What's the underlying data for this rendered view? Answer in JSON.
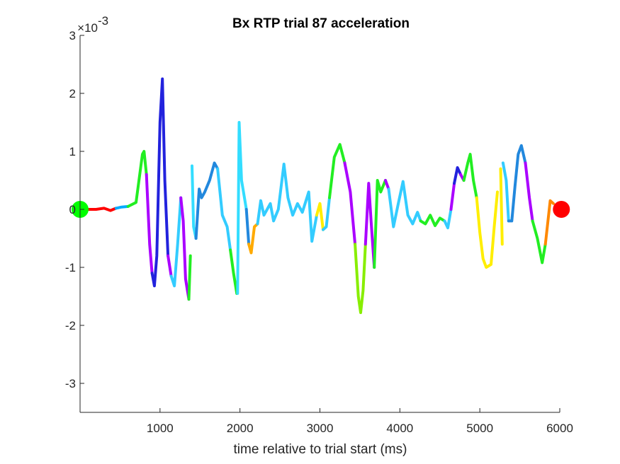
{
  "chart_data": {
    "type": "line",
    "title": "Bx  RTP trial 87 acceleration",
    "xlabel": "time relative to trial start (ms)",
    "ylabel": "",
    "exponent_prefix": "×10",
    "exponent_power": "-3",
    "xlim": [
      0,
      6000
    ],
    "ylim": [
      -3.5,
      3
    ],
    "xticks": [
      1000,
      2000,
      3000,
      4000,
      5000,
      6000
    ],
    "xtick_labels": [
      "1000",
      "2000",
      "3000",
      "4000",
      "5000",
      "6000"
    ],
    "yticks": [
      -3,
      -2,
      -1,
      0,
      1,
      2,
      3
    ],
    "ytick_labels": [
      "-3",
      "-2",
      "-1",
      "0",
      "1",
      "2",
      "3"
    ],
    "grid": false,
    "start_marker": {
      "x": 0,
      "y": 0,
      "color": "#00ff00"
    },
    "end_marker": {
      "x": 6020,
      "y": 0,
      "color": "#ff0000"
    },
    "series": [
      {
        "color": "#ff0000",
        "points": [
          [
            90,
            0
          ],
          [
            200,
            0
          ],
          [
            300,
            0.02
          ],
          [
            380,
            -0.02
          ],
          [
            450,
            0.02
          ]
        ]
      },
      {
        "color": "#00aaff",
        "points": [
          [
            450,
            0.02
          ],
          [
            520,
            0.04
          ],
          [
            600,
            0.05
          ]
        ]
      },
      {
        "color": "#22ee22",
        "points": [
          [
            600,
            0.05
          ],
          [
            700,
            0.12
          ],
          [
            780,
            0.95
          ],
          [
            800,
            1.0
          ],
          [
            830,
            0.6
          ]
        ]
      },
      {
        "color": "#aa00ff",
        "points": [
          [
            830,
            0.6
          ],
          [
            870,
            -0.6
          ],
          [
            900,
            -1.1
          ]
        ]
      },
      {
        "color": "#2222dd",
        "points": [
          [
            900,
            -1.1
          ],
          [
            930,
            -1.32
          ],
          [
            960,
            -0.8
          ],
          [
            1000,
            1.5
          ],
          [
            1030,
            2.25
          ],
          [
            1060,
            0.5
          ],
          [
            1100,
            -0.8
          ]
        ]
      },
      {
        "color": "#aa00ff",
        "points": [
          [
            1100,
            -0.8
          ],
          [
            1140,
            -1.15
          ]
        ]
      },
      {
        "color": "#33ccff",
        "points": [
          [
            1140,
            -1.15
          ],
          [
            1180,
            -1.32
          ],
          [
            1220,
            -0.6
          ],
          [
            1260,
            0.2
          ]
        ]
      },
      {
        "color": "#aa00ff",
        "points": [
          [
            1260,
            0.2
          ],
          [
            1290,
            -0.2
          ],
          [
            1320,
            -1.2
          ],
          [
            1360,
            -1.55
          ]
        ]
      },
      {
        "color": "#22ee22",
        "points": [
          [
            1360,
            -1.55
          ],
          [
            1380,
            -0.8
          ]
        ]
      },
      {
        "color": "#33ddff",
        "points": [
          [
            1400,
            0.75
          ],
          [
            1420,
            -0.3
          ],
          [
            1450,
            -0.5
          ]
        ]
      },
      {
        "color": "#2288dd",
        "points": [
          [
            1450,
            -0.5
          ],
          [
            1490,
            0.35
          ],
          [
            1520,
            0.2
          ],
          [
            1560,
            0.3
          ],
          [
            1620,
            0.5
          ],
          [
            1680,
            0.8
          ],
          [
            1720,
            0.7
          ]
        ]
      },
      {
        "color": "#33ccff",
        "points": [
          [
            1720,
            0.7
          ],
          [
            1780,
            -0.1
          ],
          [
            1840,
            -0.3
          ],
          [
            1880,
            -0.7
          ]
        ]
      },
      {
        "color": "#22ee22",
        "points": [
          [
            1880,
            -0.7
          ],
          [
            1920,
            -1.1
          ],
          [
            1960,
            -1.45
          ]
        ]
      },
      {
        "color": "#33ddff",
        "points": [
          [
            1970,
            -1.45
          ],
          [
            1990,
            1.5
          ],
          [
            2020,
            0.5
          ],
          [
            2080,
            0.0
          ]
        ]
      },
      {
        "color": "#2288dd",
        "points": [
          [
            2080,
            0.0
          ],
          [
            2110,
            -0.6
          ]
        ]
      },
      {
        "color": "#ffaa00",
        "points": [
          [
            2110,
            -0.6
          ],
          [
            2140,
            -0.75
          ],
          [
            2180,
            -0.3
          ],
          [
            2220,
            -0.25
          ]
        ]
      },
      {
        "color": "#33ccff",
        "points": [
          [
            2220,
            -0.25
          ],
          [
            2260,
            0.15
          ],
          [
            2300,
            -0.1
          ],
          [
            2340,
            0.0
          ],
          [
            2380,
            0.1
          ],
          [
            2420,
            -0.2
          ],
          [
            2480,
            0.0
          ],
          [
            2550,
            0.78
          ],
          [
            2600,
            0.2
          ],
          [
            2660,
            -0.1
          ],
          [
            2720,
            0.1
          ],
          [
            2780,
            -0.05
          ],
          [
            2860,
            0.3
          ],
          [
            2900,
            -0.55
          ],
          [
            2960,
            -0.1
          ]
        ]
      },
      {
        "color": "#ffee00",
        "points": [
          [
            2960,
            -0.1
          ],
          [
            3000,
            0.1
          ],
          [
            3040,
            -0.35
          ]
        ]
      },
      {
        "color": "#33ccff",
        "points": [
          [
            3040,
            -0.35
          ],
          [
            3080,
            -0.3
          ],
          [
            3120,
            0.2
          ]
        ]
      },
      {
        "color": "#22ee22",
        "points": [
          [
            3120,
            0.2
          ],
          [
            3180,
            0.9
          ],
          [
            3250,
            1.12
          ],
          [
            3310,
            0.8
          ]
        ]
      },
      {
        "color": "#aa00ff",
        "points": [
          [
            3310,
            0.8
          ],
          [
            3380,
            0.3
          ],
          [
            3440,
            -0.6
          ]
        ]
      },
      {
        "color": "#88ee00",
        "points": [
          [
            3440,
            -0.6
          ],
          [
            3480,
            -1.5
          ],
          [
            3510,
            -1.78
          ],
          [
            3540,
            -1.4
          ],
          [
            3570,
            -0.6
          ]
        ]
      },
      {
        "color": "#aa00ff",
        "points": [
          [
            3570,
            -0.6
          ],
          [
            3610,
            0.45
          ],
          [
            3640,
            -0.2
          ],
          [
            3680,
            -1.0
          ]
        ]
      },
      {
        "color": "#22ee22",
        "points": [
          [
            3680,
            -1.0
          ],
          [
            3720,
            0.5
          ],
          [
            3760,
            0.3
          ],
          [
            3820,
            0.5
          ]
        ]
      },
      {
        "color": "#aa00ff",
        "points": [
          [
            3820,
            0.5
          ],
          [
            3860,
            0.35
          ]
        ]
      },
      {
        "color": "#33ccff",
        "points": [
          [
            3860,
            0.35
          ],
          [
            3920,
            -0.3
          ],
          [
            3980,
            0.1
          ],
          [
            4040,
            0.48
          ],
          [
            4100,
            -0.1
          ],
          [
            4160,
            -0.25
          ],
          [
            4220,
            -0.05
          ],
          [
            4260,
            -0.2
          ]
        ]
      },
      {
        "color": "#22ee22",
        "points": [
          [
            4260,
            -0.2
          ],
          [
            4320,
            -0.25
          ],
          [
            4380,
            -0.1
          ],
          [
            4440,
            -0.28
          ],
          [
            4500,
            -0.15
          ],
          [
            4560,
            -0.2
          ]
        ]
      },
      {
        "color": "#33ccff",
        "points": [
          [
            4560,
            -0.2
          ],
          [
            4600,
            -0.32
          ],
          [
            4640,
            0.0
          ]
        ]
      },
      {
        "color": "#aa00ff",
        "points": [
          [
            4640,
            0.0
          ],
          [
            4680,
            0.45
          ]
        ]
      },
      {
        "color": "#2222dd",
        "points": [
          [
            4680,
            0.45
          ],
          [
            4720,
            0.72
          ],
          [
            4760,
            0.6
          ]
        ]
      },
      {
        "color": "#aa00ff",
        "points": [
          [
            4760,
            0.6
          ],
          [
            4800,
            0.5
          ]
        ]
      },
      {
        "color": "#22ee22",
        "points": [
          [
            4800,
            0.5
          ],
          [
            4850,
            0.8
          ],
          [
            4880,
            0.95
          ],
          [
            4920,
            0.5
          ],
          [
            4960,
            0.2
          ]
        ]
      },
      {
        "color": "#ffee00",
        "points": [
          [
            4960,
            0.2
          ],
          [
            5000,
            -0.4
          ],
          [
            5040,
            -0.85
          ],
          [
            5080,
            -1.0
          ],
          [
            5140,
            -0.95
          ],
          [
            5180,
            -0.3
          ],
          [
            5220,
            0.3
          ]
        ]
      },
      {
        "color": "#ffee00",
        "points": [
          [
            5260,
            0.7
          ],
          [
            5280,
            -0.6
          ]
        ]
      },
      {
        "color": "#33ccff",
        "points": [
          [
            5290,
            0.8
          ],
          [
            5330,
            0.5
          ],
          [
            5360,
            -0.2
          ]
        ]
      },
      {
        "color": "#2288dd",
        "points": [
          [
            5360,
            -0.2
          ],
          [
            5400,
            -0.2
          ],
          [
            5440,
            0.4
          ],
          [
            5480,
            0.95
          ],
          [
            5520,
            1.1
          ],
          [
            5570,
            0.8
          ]
        ]
      },
      {
        "color": "#aa00ff",
        "points": [
          [
            5570,
            0.8
          ],
          [
            5620,
            0.2
          ],
          [
            5660,
            -0.2
          ]
        ]
      },
      {
        "color": "#22ee22",
        "points": [
          [
            5660,
            -0.2
          ],
          [
            5720,
            -0.5
          ],
          [
            5780,
            -0.92
          ],
          [
            5820,
            -0.6
          ]
        ]
      },
      {
        "color": "#ff8800",
        "points": [
          [
            5820,
            -0.6
          ],
          [
            5880,
            0.15
          ],
          [
            5920,
            0.1
          ]
        ]
      }
    ]
  }
}
